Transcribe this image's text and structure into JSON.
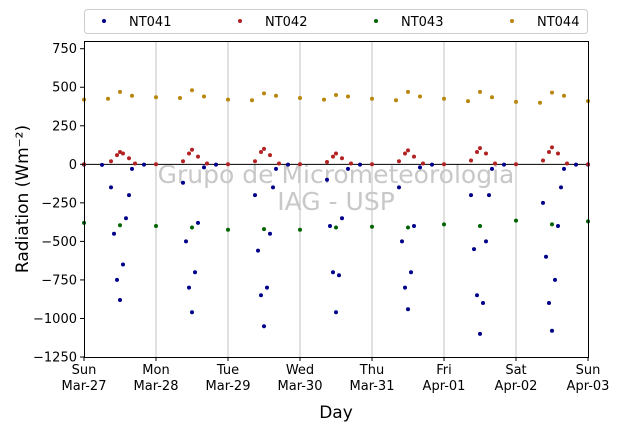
{
  "chart_data": {
    "type": "scatter",
    "xlabel": "Day",
    "ylabel": "Radiation (Wm⁻²)",
    "ylim": [
      -1250,
      800
    ],
    "yticks": [
      -1250,
      -1000,
      -750,
      -500,
      -250,
      0,
      250,
      500,
      750
    ],
    "xlim": [
      "2022-03-27",
      "2022-04-03"
    ],
    "x_ticks": [
      {
        "day": "Sun",
        "date": "Mar-27"
      },
      {
        "day": "Mon",
        "date": "Mar-28"
      },
      {
        "day": "Tue",
        "date": "Mar-29"
      },
      {
        "day": "Wed",
        "date": "Mar-30"
      },
      {
        "day": "Thu",
        "date": "Mar-31"
      },
      {
        "day": "Fri",
        "date": "Apr-01"
      },
      {
        "day": "Sat",
        "date": "Apr-02"
      },
      {
        "day": "Sun",
        "date": "Apr-03"
      }
    ],
    "grid": "vertical",
    "legend_placement": "top",
    "watermark": [
      "Grupo de Micrometeorologia",
      "IAG - USP"
    ],
    "series": [
      {
        "name": "NT041",
        "color": "#00008b",
        "points": [
          [
            "2022-03-27",
            -2
          ],
          [
            "2022-03-27T06:00",
            -4
          ],
          [
            "2022-03-27T09:00",
            -150
          ],
          [
            "2022-03-27T10:00",
            -450
          ],
          [
            "2022-03-27T11:00",
            -750
          ],
          [
            "2022-03-27T12:00",
            -880
          ],
          [
            "2022-03-27T13:00",
            -650
          ],
          [
            "2022-03-27T14:00",
            -350
          ],
          [
            "2022-03-27T15:00",
            -200
          ],
          [
            "2022-03-27T16:00",
            -30
          ],
          [
            "2022-03-27T20:00",
            -2
          ],
          [
            "2022-03-28T09:00",
            -120
          ],
          [
            "2022-03-28T10:00",
            -500
          ],
          [
            "2022-03-28T11:00",
            -800
          ],
          [
            "2022-03-28T12:00",
            -960
          ],
          [
            "2022-03-28T13:00",
            -700
          ],
          [
            "2022-03-28T14:00",
            -380
          ],
          [
            "2022-03-28T16:00",
            -20
          ],
          [
            "2022-03-28T20:00",
            -2
          ],
          [
            "2022-03-29T09:00",
            -200
          ],
          [
            "2022-03-29T10:00",
            -560
          ],
          [
            "2022-03-29T11:00",
            -850
          ],
          [
            "2022-03-29T12:00",
            -1050
          ],
          [
            "2022-03-29T13:00",
            -800
          ],
          [
            "2022-03-29T14:00",
            -450
          ],
          [
            "2022-03-29T15:00",
            -150
          ],
          [
            "2022-03-29T16:00",
            -30
          ],
          [
            "2022-03-29T20:00",
            -2
          ],
          [
            "2022-03-30T09:00",
            -100
          ],
          [
            "2022-03-30T10:00",
            -400
          ],
          [
            "2022-03-30T11:00",
            -700
          ],
          [
            "2022-03-30T12:00",
            -960
          ],
          [
            "2022-03-30T13:00",
            -720
          ],
          [
            "2022-03-30T14:00",
            -350
          ],
          [
            "2022-03-30T16:00",
            -30
          ],
          [
            "2022-03-30T20:00",
            -2
          ],
          [
            "2022-03-31T09:00",
            -150
          ],
          [
            "2022-03-31T10:00",
            -500
          ],
          [
            "2022-03-31T11:00",
            -800
          ],
          [
            "2022-03-31T12:00",
            -940
          ],
          [
            "2022-03-31T13:00",
            -700
          ],
          [
            "2022-03-31T14:00",
            -400
          ],
          [
            "2022-03-31T16:00",
            -20
          ],
          [
            "2022-03-31T20:00",
            -2
          ],
          [
            "2022-04-01T09:00",
            -200
          ],
          [
            "2022-04-01T10:00",
            -550
          ],
          [
            "2022-04-01T11:00",
            -850
          ],
          [
            "2022-04-01T12:00",
            -1100
          ],
          [
            "2022-04-01T13:00",
            -900
          ],
          [
            "2022-04-01T14:00",
            -500
          ],
          [
            "2022-04-01T15:00",
            -200
          ],
          [
            "2022-04-01T16:00",
            -30
          ],
          [
            "2022-04-01T20:00",
            -2
          ],
          [
            "2022-04-02T09:00",
            -250
          ],
          [
            "2022-04-02T10:00",
            -600
          ],
          [
            "2022-04-02T11:00",
            -900
          ],
          [
            "2022-04-02T12:00",
            -1080
          ],
          [
            "2022-04-02T13:00",
            -750
          ],
          [
            "2022-04-02T14:00",
            -400
          ],
          [
            "2022-04-02T15:00",
            -150
          ],
          [
            "2022-04-02T16:00",
            -30
          ],
          [
            "2022-04-02T20:00",
            -2
          ],
          [
            "2022-04-03",
            -2
          ]
        ]
      },
      {
        "name": "NT042",
        "color": "#b22222",
        "points": [
          [
            "2022-03-27",
            0
          ],
          [
            "2022-03-27T09:00",
            20
          ],
          [
            "2022-03-27T11:00",
            60
          ],
          [
            "2022-03-27T12:00",
            80
          ],
          [
            "2022-03-27T13:00",
            70
          ],
          [
            "2022-03-27T15:00",
            40
          ],
          [
            "2022-03-27T17:00",
            5
          ],
          [
            "2022-03-28",
            0
          ],
          [
            "2022-03-28T09:00",
            20
          ],
          [
            "2022-03-28T11:00",
            70
          ],
          [
            "2022-03-28T12:00",
            95
          ],
          [
            "2022-03-28T14:00",
            50
          ],
          [
            "2022-03-28T17:00",
            5
          ],
          [
            "2022-03-29",
            0
          ],
          [
            "2022-03-29T09:00",
            20
          ],
          [
            "2022-03-29T11:00",
            80
          ],
          [
            "2022-03-29T12:00",
            100
          ],
          [
            "2022-03-29T14:00",
            60
          ],
          [
            "2022-03-29T17:00",
            5
          ],
          [
            "2022-03-30",
            0
          ],
          [
            "2022-03-30T09:00",
            15
          ],
          [
            "2022-03-30T11:00",
            50
          ],
          [
            "2022-03-30T12:00",
            70
          ],
          [
            "2022-03-30T14:00",
            40
          ],
          [
            "2022-03-30T17:00",
            5
          ],
          [
            "2022-03-31",
            0
          ],
          [
            "2022-03-31T09:00",
            20
          ],
          [
            "2022-03-31T11:00",
            70
          ],
          [
            "2022-03-31T12:00",
            90
          ],
          [
            "2022-03-31T14:00",
            50
          ],
          [
            "2022-03-31T17:00",
            5
          ],
          [
            "2022-04-01",
            0
          ],
          [
            "2022-04-01T09:00",
            25
          ],
          [
            "2022-04-01T11:00",
            80
          ],
          [
            "2022-04-01T12:00",
            105
          ],
          [
            "2022-04-01T14:00",
            70
          ],
          [
            "2022-04-01T17:00",
            5
          ],
          [
            "2022-04-02",
            0
          ],
          [
            "2022-04-02T09:00",
            25
          ],
          [
            "2022-04-02T11:00",
            80
          ],
          [
            "2022-04-02T12:00",
            110
          ],
          [
            "2022-04-02T14:00",
            70
          ],
          [
            "2022-04-02T17:00",
            5
          ],
          [
            "2022-04-03",
            0
          ]
        ]
      },
      {
        "name": "NT043",
        "color": "#006400",
        "points": [
          [
            "2022-03-27",
            -380
          ],
          [
            "2022-03-27T12:00",
            -395
          ],
          [
            "2022-03-28",
            -400
          ],
          [
            "2022-03-28T12:00",
            -410
          ],
          [
            "2022-03-29",
            -425
          ],
          [
            "2022-03-29T12:00",
            -420
          ],
          [
            "2022-03-30",
            -425
          ],
          [
            "2022-03-30T12:00",
            -410
          ],
          [
            "2022-03-31",
            -405
          ],
          [
            "2022-03-31T12:00",
            -410
          ],
          [
            "2022-04-01",
            -390
          ],
          [
            "2022-04-01T12:00",
            -400
          ],
          [
            "2022-04-02",
            -365
          ],
          [
            "2022-04-02T12:00",
            -390
          ],
          [
            "2022-04-03",
            -370
          ]
        ]
      },
      {
        "name": "NT044",
        "color": "#b8860b",
        "points": [
          [
            "2022-03-27",
            420
          ],
          [
            "2022-03-27T08:00",
            425
          ],
          [
            "2022-03-27T12:00",
            470
          ],
          [
            "2022-03-27T16:00",
            445
          ],
          [
            "2022-03-28",
            435
          ],
          [
            "2022-03-28T08:00",
            430
          ],
          [
            "2022-03-28T12:00",
            480
          ],
          [
            "2022-03-28T16:00",
            440
          ],
          [
            "2022-03-29",
            420
          ],
          [
            "2022-03-29T08:00",
            415
          ],
          [
            "2022-03-29T12:00",
            460
          ],
          [
            "2022-03-29T16:00",
            445
          ],
          [
            "2022-03-30",
            430
          ],
          [
            "2022-03-30T08:00",
            420
          ],
          [
            "2022-03-30T12:00",
            450
          ],
          [
            "2022-03-30T16:00",
            440
          ],
          [
            "2022-03-31",
            425
          ],
          [
            "2022-03-31T08:00",
            415
          ],
          [
            "2022-03-31T12:00",
            470
          ],
          [
            "2022-03-31T16:00",
            440
          ],
          [
            "2022-04-01",
            425
          ],
          [
            "2022-04-01T08:00",
            410
          ],
          [
            "2022-04-01T12:00",
            470
          ],
          [
            "2022-04-01T16:00",
            435
          ],
          [
            "2022-04-02",
            405
          ],
          [
            "2022-04-02T08:00",
            400
          ],
          [
            "2022-04-02T12:00",
            465
          ],
          [
            "2022-04-02T16:00",
            445
          ],
          [
            "2022-04-03",
            410
          ]
        ]
      }
    ]
  }
}
